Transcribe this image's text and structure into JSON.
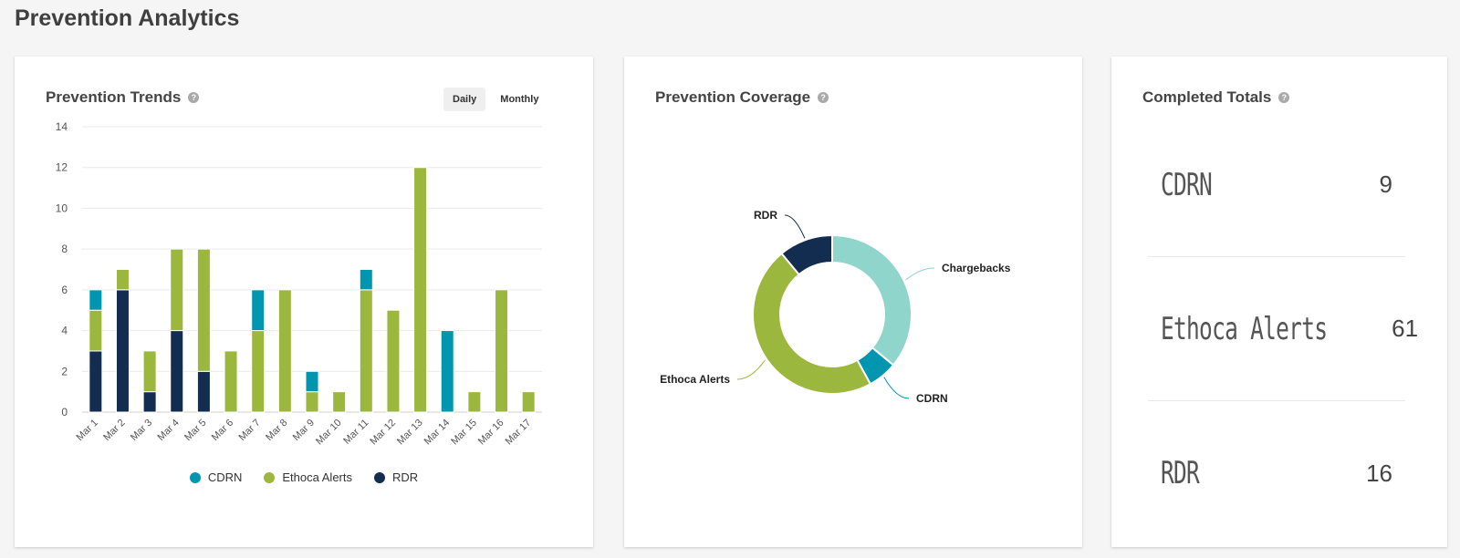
{
  "page": {
    "title": "Prevention Analytics"
  },
  "colors": {
    "cdrn": "#0096b0",
    "ethoca": "#9cb73e",
    "rdr": "#132d51",
    "chargebacks": "#8fd5cc"
  },
  "trends": {
    "title": "Prevention Trends",
    "help": "?",
    "toggle": {
      "daily": "Daily",
      "monthly": "Monthly",
      "active": "daily"
    }
  },
  "coverage": {
    "title": "Prevention Coverage",
    "help": "?"
  },
  "totals": {
    "title": "Completed Totals",
    "help": "?",
    "rows": [
      {
        "label": "CDRN",
        "value": "9"
      },
      {
        "label": "Ethoca Alerts",
        "value": "61"
      },
      {
        "label": "RDR",
        "value": "16"
      }
    ]
  },
  "chart_data": [
    {
      "type": "bar",
      "stacked": true,
      "title": "",
      "xlabel": "",
      "ylabel": "",
      "ylim": [
        0,
        14
      ],
      "yticks": [
        0,
        2,
        4,
        6,
        8,
        10,
        12,
        14
      ],
      "grid": true,
      "legend_position": "bottom",
      "categories": [
        "Mar 1",
        "Mar 2",
        "Mar 3",
        "Mar 4",
        "Mar 5",
        "Mar 6",
        "Mar 7",
        "Mar 8",
        "Mar 9",
        "Mar 10",
        "Mar 11",
        "Mar 12",
        "Mar 13",
        "Mar 14",
        "Mar 15",
        "Mar 16",
        "Mar 17"
      ],
      "series": [
        {
          "name": "RDR",
          "color": "#132d51",
          "values": [
            3,
            6,
            1,
            4,
            2,
            0,
            0,
            0,
            0,
            0,
            0,
            0,
            0,
            0,
            0,
            0,
            0
          ]
        },
        {
          "name": "Ethoca Alerts",
          "color": "#9cb73e",
          "values": [
            2,
            1,
            2,
            4,
            6,
            3,
            4,
            6,
            1,
            1,
            6,
            5,
            12,
            0,
            1,
            6,
            1
          ]
        },
        {
          "name": "CDRN",
          "color": "#0096b0",
          "values": [
            1,
            0,
            0,
            0,
            0,
            0,
            2,
            0,
            1,
            0,
            1,
            0,
            0,
            4,
            0,
            0,
            0
          ]
        }
      ]
    },
    {
      "type": "pie",
      "donut": true,
      "title": "",
      "slices": [
        {
          "name": "Chargebacks",
          "value": 36,
          "color": "#8fd5cc"
        },
        {
          "name": "CDRN",
          "value": 6,
          "color": "#0096b0"
        },
        {
          "name": "Ethoca Alerts",
          "value": 47,
          "color": "#9cb73e"
        },
        {
          "name": "RDR",
          "value": 11,
          "color": "#132d51"
        }
      ]
    }
  ]
}
